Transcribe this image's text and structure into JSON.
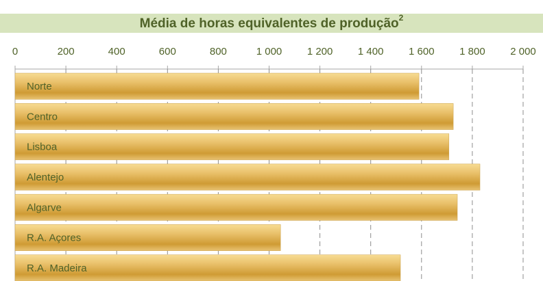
{
  "chart_data": {
    "type": "bar",
    "orientation": "horizontal",
    "title": "Média de horas equivalentes de produção",
    "title_superscript": "2",
    "categories": [
      "Norte",
      "Centro",
      "Lisboa",
      "Alentejo",
      "Algarve",
      "R.A. Açores",
      "R.A. Madeira"
    ],
    "values": [
      1590,
      1725,
      1708,
      1830,
      1741,
      1045,
      1517
    ],
    "color": "#dcae4a",
    "xlim": [
      0,
      2000
    ],
    "xticks": [
      0,
      200,
      400,
      600,
      800,
      {
        "value": 1000,
        "label": "1 000"
      },
      {
        "value": 1200,
        "label": "1 200"
      },
      {
        "value": 1400,
        "label": "1 400"
      },
      {
        "value": 1600,
        "label": "1 600"
      },
      {
        "value": 1800,
        "label": "1 800"
      },
      {
        "value": 2000,
        "label": "2 000"
      }
    ],
    "grid": true
  }
}
